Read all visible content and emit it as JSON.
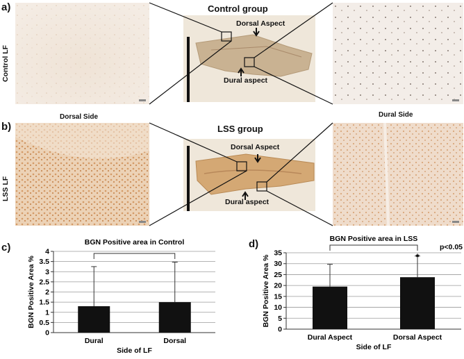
{
  "panels": {
    "a": {
      "letter": "a)",
      "row_label": "Control LF",
      "group_title": "Control group",
      "dorsal_label": "Dorsal Aspect",
      "dural_label": "Dural aspect"
    },
    "b": {
      "letter": "b)",
      "row_label": "LSS LF",
      "group_title": "LSS group",
      "dorsal_label": "Dorsal Aspect",
      "dural_label": "Dural aspect",
      "left_caption": "Dorsal Side",
      "right_caption": "Dural Side"
    },
    "c": {
      "letter": "c)"
    },
    "d": {
      "letter": "d)"
    }
  },
  "chart_data": [
    {
      "type": "bar",
      "title": "BGN Positive area in Control",
      "xlabel": "Side of LF",
      "ylabel": "BGN Positive Area %",
      "categories": [
        "Dural",
        "Dorsal"
      ],
      "values": [
        1.3,
        1.5
      ],
      "error_upper": [
        3.25,
        3.47
      ],
      "ylim": [
        0,
        4
      ],
      "yticks": [
        "0",
        "0.5",
        "1",
        "1.5",
        "2",
        "2.5",
        "3",
        "3.5",
        "4"
      ],
      "yticks_values": [
        0,
        0.5,
        1,
        1.5,
        2,
        2.5,
        3,
        3.5,
        4
      ],
      "grid": true,
      "bar_color": "#111111"
    },
    {
      "type": "bar",
      "title": "BGN Positive area in LSS",
      "xlabel": "Side of LF",
      "ylabel": "BGN Positive Area %",
      "categories": [
        "Dural Aspect",
        "Dorsal Aspect"
      ],
      "values": [
        19.5,
        23.8
      ],
      "error_upper": [
        29.7,
        33.5
      ],
      "ylim": [
        0,
        35
      ],
      "yticks": [
        "0",
        "5",
        "10",
        "15",
        "20",
        "25",
        "30",
        "35"
      ],
      "yticks_values": [
        0,
        5,
        10,
        15,
        20,
        25,
        30,
        35
      ],
      "grid": true,
      "significance": "*",
      "pvalue": "p<0.05",
      "bar_color": "#111111"
    }
  ]
}
